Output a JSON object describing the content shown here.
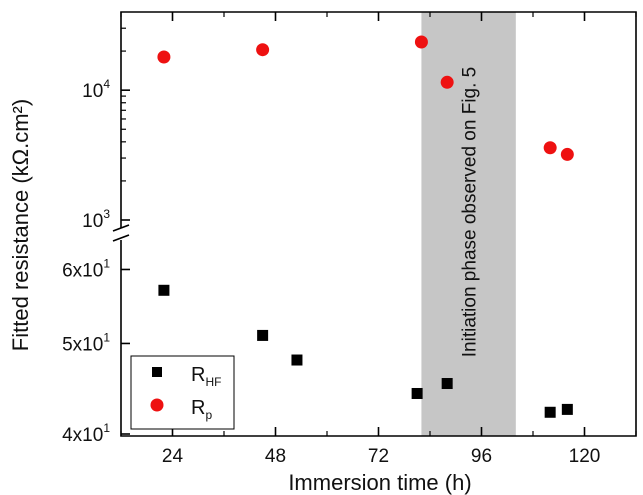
{
  "chart_data": {
    "type": "scatter",
    "xlabel": "Immersion time (h)",
    "ylabel": "Fitted resistance (kΩ.cm²)",
    "x_ticks": [
      24,
      48,
      72,
      96,
      120
    ],
    "x_tick_labels": [
      "24",
      "48",
      "72",
      "96",
      "120"
    ],
    "xlim": [
      12,
      132
    ],
    "panels": [
      {
        "name": "upper",
        "scale": "log",
        "ylim": [
          1000,
          40000
        ],
        "y_ticks": [
          1000,
          10000
        ],
        "y_tick_labels": [
          {
            "base": "10",
            "exp": "3"
          },
          {
            "base": "10",
            "exp": "4"
          }
        ]
      },
      {
        "name": "lower",
        "scale": "log",
        "ylim": [
          40,
          65
        ],
        "y_ticks": [
          40,
          50,
          60
        ],
        "y_tick_labels": [
          "4x10",
          "5x10",
          "6x10"
        ],
        "y_tick_exp": "1"
      }
    ],
    "series": [
      {
        "label_base": "R",
        "label_sub": "p",
        "marker": "circle",
        "color": "#ee1111",
        "panel": "upper",
        "x": [
          22,
          45,
          82,
          88,
          112,
          116
        ],
        "y": [
          18000,
          20500,
          23500,
          11500,
          3600,
          3200
        ]
      },
      {
        "label_base": "R",
        "label_sub": "HF",
        "marker": "square",
        "color": "#000000",
        "panel": "lower",
        "x": [
          22,
          45,
          53,
          81,
          88,
          112,
          116
        ],
        "y": [
          57,
          51,
          48,
          44.2,
          45.3,
          42.2,
          42.5
        ]
      }
    ],
    "shaded_region": {
      "x_range": [
        82,
        104
      ],
      "color": "#c6c6c6",
      "label": "Initiation phase observed on Fig. 5"
    },
    "legend": {
      "placement": "bottom-left",
      "order": [
        "R_HF",
        "R_p"
      ]
    },
    "grid": false
  }
}
